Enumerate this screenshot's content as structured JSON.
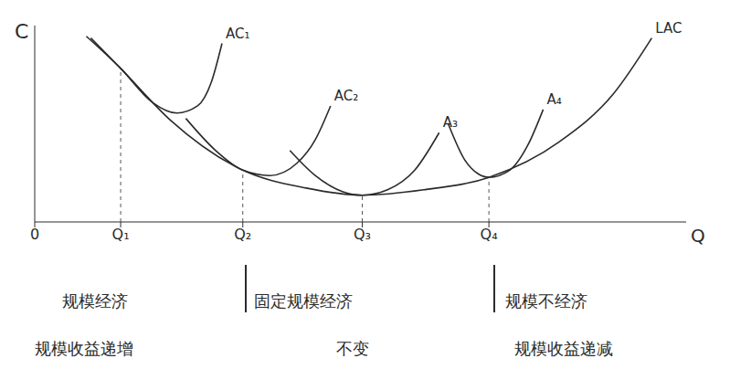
{
  "chart_data": {
    "type": "line",
    "x_label": "Q",
    "y_label": "C",
    "xlim": [
      0,
      7.2
    ],
    "ylim": [
      0,
      11
    ],
    "xticks": [
      0,
      {
        "value": 0.95,
        "label": "Q₁"
      },
      {
        "value": 2.3,
        "label": "Q₂"
      },
      {
        "value": 3.62,
        "label": "Q₃"
      },
      {
        "value": 5.02,
        "label": "Q₄"
      }
    ],
    "yticks": [],
    "tick_labels": "x",
    "grid": false,
    "series": [
      {
        "name": "AC₁",
        "color": "#2b2b2b",
        "x": [
          0.57,
          0.95,
          1.3,
          1.57,
          1.8,
          1.95,
          2.07
        ],
        "values": [
          10.4,
          8.6,
          6.7,
          6.1,
          6.5,
          7.8,
          10.0
        ]
      },
      {
        "name": "AC₂",
        "color": "#2b2b2b",
        "x": [
          1.67,
          2.0,
          2.3,
          2.6,
          2.9,
          3.1,
          3.27
        ],
        "values": [
          5.8,
          4.0,
          2.9,
          2.6,
          3.3,
          4.6,
          6.5
        ]
      },
      {
        "name": "A₃",
        "color": "#2b2b2b",
        "x": [
          2.82,
          3.1,
          3.4,
          3.62,
          3.9,
          4.2,
          4.47
        ],
        "values": [
          4.0,
          2.6,
          1.7,
          1.5,
          1.8,
          2.9,
          5.0
        ]
      },
      {
        "name": "A₄",
        "color": "#2b2b2b",
        "x": [
          4.57,
          4.75,
          4.9,
          5.02,
          5.25,
          5.45,
          5.62
        ],
        "values": [
          5.5,
          3.5,
          2.7,
          2.5,
          2.9,
          4.3,
          6.3
        ]
      },
      {
        "name": "LAC",
        "color": "#2b2b2b",
        "x": [
          0.62,
          0.95,
          1.5,
          2.3,
          3.0,
          3.62,
          4.3,
          5.02,
          5.8,
          6.4,
          6.82
        ],
        "values": [
          10.3,
          8.6,
          5.7,
          2.9,
          1.9,
          1.5,
          1.8,
          2.5,
          4.5,
          7.2,
          10.3
        ]
      }
    ],
    "annotations": {
      "economies": [
        "规模经济",
        "固定规模经济",
        "规模不经济"
      ],
      "returns": [
        "规模收益递增",
        "不变",
        "规模收益递减"
      ]
    }
  }
}
